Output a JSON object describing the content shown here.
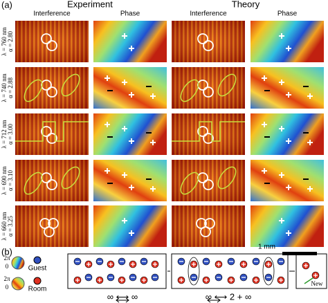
{
  "panel_a": {
    "label": "(a)",
    "groups": [
      "Experiment",
      "Theory"
    ],
    "columns": [
      "Interference",
      "Phase",
      "Interference",
      "Phase"
    ],
    "rows": [
      {
        "wavelength": "λ = 760 nm",
        "alpha": "α = 2.80"
      },
      {
        "wavelength": "λ = 740 nm",
        "alpha": "α = 2.88"
      },
      {
        "wavelength": "λ = 712 nm",
        "alpha": "α = 3.00"
      },
      {
        "wavelength": "λ = 690 nm",
        "alpha": "α = 3.10"
      },
      {
        "wavelength": "λ = 660 nm",
        "alpha": "α = 3.25"
      }
    ],
    "scale_bar": "1 mm"
  },
  "panel_b": {
    "label": "(b)",
    "legend": [
      {
        "top": "2π",
        "bottom": "0",
        "name": "Guest"
      },
      {
        "top": "2π",
        "bottom": "0",
        "name": "Room"
      }
    ],
    "transitions": [
      "∞ ⟷ ∞",
      "∞ ⟷ 2 + ∞"
    ],
    "new_label": "New"
  }
}
